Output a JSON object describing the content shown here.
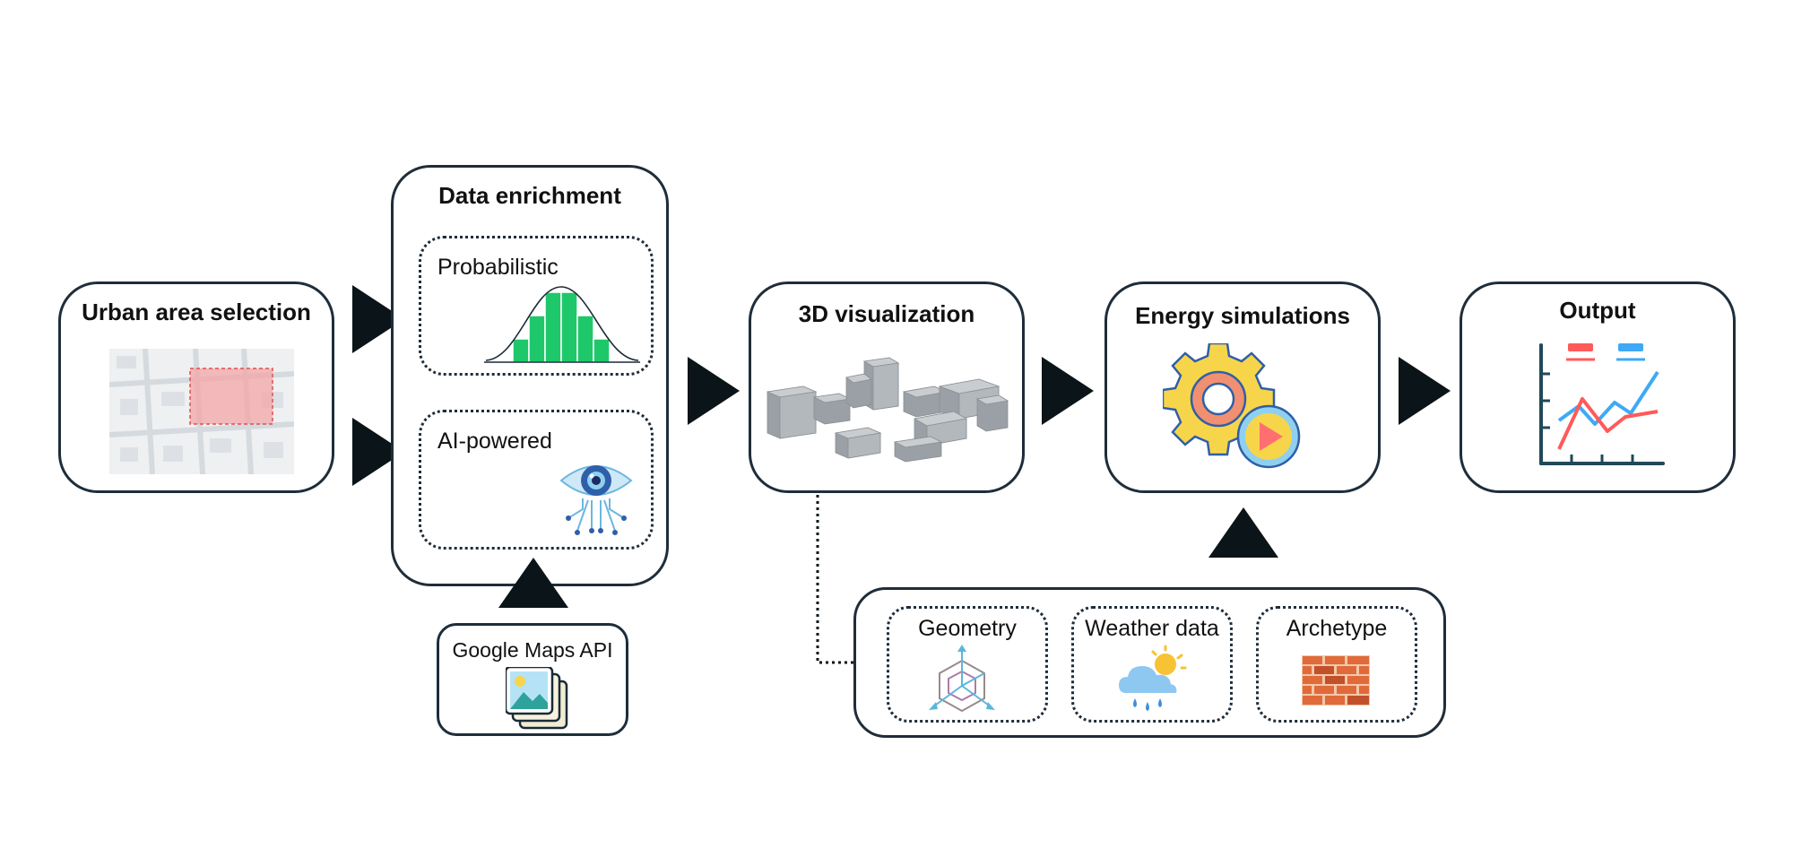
{
  "stages": {
    "urban": {
      "title": "Urban area selection"
    },
    "enrichment": {
      "title": "Data enrichment",
      "probabilistic": "Probabilistic",
      "ai": "AI-powered"
    },
    "visualization": {
      "title": "3D visualization"
    },
    "energy": {
      "title": "Energy simulations"
    },
    "output": {
      "title": "Output"
    }
  },
  "inputs": {
    "google_maps": "Google Maps API",
    "geometry": "Geometry",
    "weather": "Weather data",
    "archetype": "Archetype"
  },
  "colors": {
    "border": "#1f2d3a",
    "arrow": "#0b1418",
    "histogram": "#1ec86a",
    "selection": "#f4a6a6",
    "gear": "#f7d54a",
    "play": "#ff6f6f",
    "brick": "#e06a3a"
  },
  "icons": [
    "map-selection-icon",
    "histogram-icon",
    "ai-eye-icon",
    "buildings-3d-icon",
    "gear-play-icon",
    "line-chart-icon",
    "images-stack-icon",
    "geometry-cube-icon",
    "weather-cloud-icon",
    "brick-wall-icon"
  ]
}
